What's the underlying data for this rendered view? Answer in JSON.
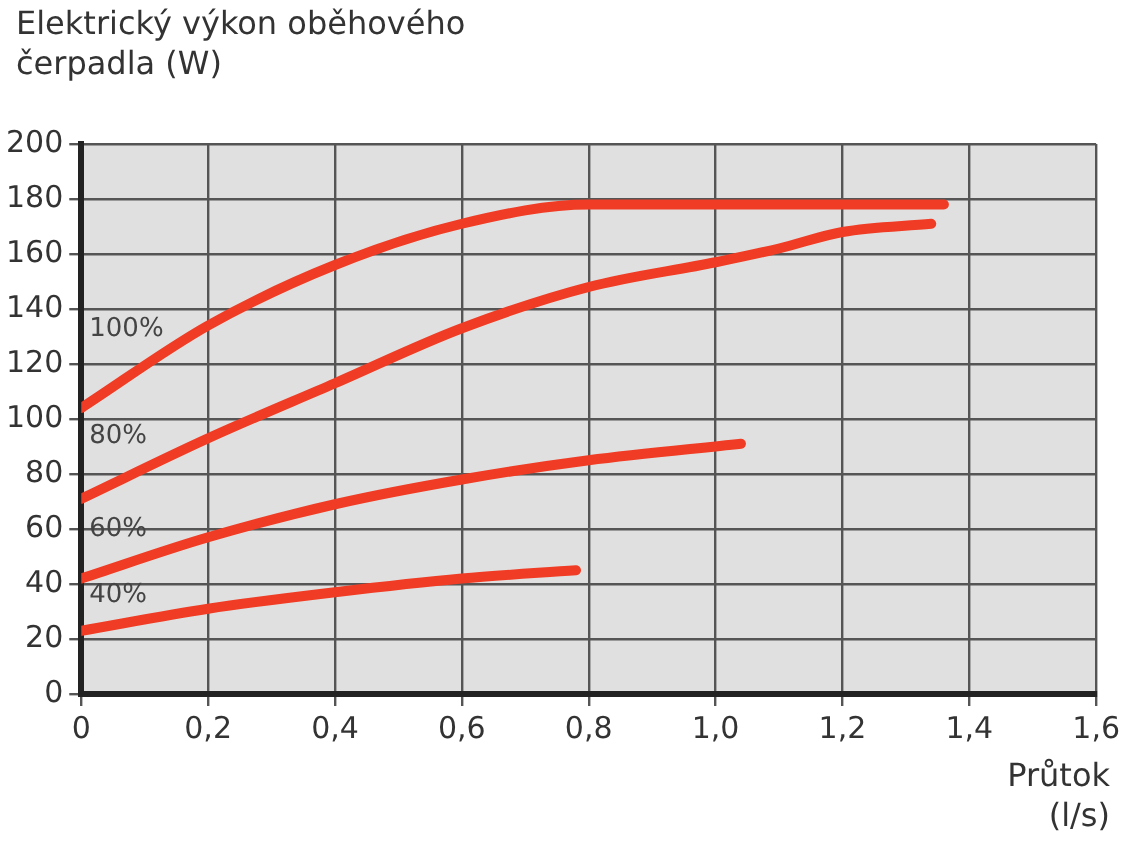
{
  "chart_data": {
    "type": "line",
    "ylabel": "Elektrický výkon oběhového čerpadla (W)",
    "xlabel": "Průtok (l/s)",
    "series": [
      {
        "name": "100%",
        "color": "#f03c24",
        "x": [
          0,
          0.2,
          0.4,
          0.6,
          0.8,
          1.0,
          1.2,
          1.36
        ],
        "values": [
          104,
          134,
          156,
          171,
          178,
          178,
          178,
          178
        ]
      },
      {
        "name": "80%",
        "color": "#f03c24",
        "x": [
          0,
          0.2,
          0.4,
          0.6,
          0.8,
          1.0,
          1.1,
          1.2,
          1.34
        ],
        "values": [
          71,
          93,
          113,
          133,
          148,
          157,
          162,
          168,
          171
        ]
      },
      {
        "name": "60%",
        "color": "#f03c24",
        "x": [
          0,
          0.2,
          0.4,
          0.6,
          0.8,
          1.04
        ],
        "values": [
          42,
          57,
          69,
          78,
          85,
          91
        ]
      },
      {
        "name": "40%",
        "color": "#f03c24",
        "x": [
          0,
          0.2,
          0.4,
          0.6,
          0.78
        ],
        "values": [
          23,
          31,
          37,
          42,
          45
        ]
      }
    ],
    "xlim": [
      0,
      1.6
    ],
    "xticks": [
      0,
      {
        "value": 0.2,
        "label": "0,2"
      },
      {
        "value": 0.4,
        "label": "0,4"
      },
      {
        "value": 0.6,
        "label": "0,6"
      },
      {
        "value": 0.8,
        "label": "0,8"
      },
      {
        "value": 1,
        "label": "1,0"
      },
      {
        "value": 1.2,
        "label": "1,2"
      },
      {
        "value": 1.4,
        "label": "1,4"
      },
      {
        "value": 1.6,
        "label": "1,6"
      }
    ],
    "ylim": [
      0,
      200
    ],
    "yticks": [
      0,
      20,
      40,
      60,
      80,
      100,
      120,
      140,
      160,
      180,
      200
    ],
    "grid": true,
    "legend": false,
    "marker": "none",
    "line_style": "solid"
  }
}
